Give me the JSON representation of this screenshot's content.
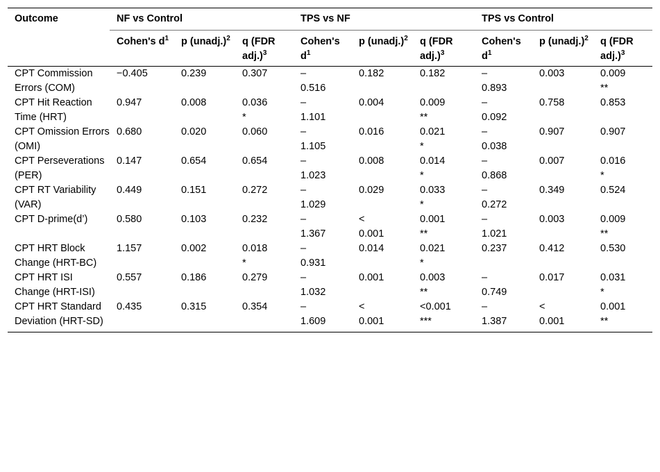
{
  "header": {
    "outcome": "Outcome",
    "groups": [
      "NF vs Control",
      "TPS vs NF",
      "TPS vs Control"
    ],
    "cols": [
      {
        "label": "Cohen's d",
        "sup": "1"
      },
      {
        "label": "p (unadj.)",
        "sup": "2"
      },
      {
        "label": "q (FDR adj.)",
        "sup": "3"
      }
    ]
  },
  "rows": [
    {
      "outcome": "CPT Commission Errors (COM)",
      "vals": [
        {
          "top": "−0.405",
          "bot": ""
        },
        {
          "top": "0.239",
          "bot": ""
        },
        {
          "top": "0.307",
          "bot": ""
        },
        {
          "top": "–",
          "bot": "0.516"
        },
        {
          "top": "0.182",
          "bot": ""
        },
        {
          "top": "0.182",
          "bot": ""
        },
        {
          "top": "–",
          "bot": "0.893"
        },
        {
          "top": "0.003",
          "bot": ""
        },
        {
          "top": "0.009",
          "bot": "**"
        }
      ]
    },
    {
      "outcome": "CPT Hit Reaction Time (HRT)",
      "vals": [
        {
          "top": "0.947",
          "bot": ""
        },
        {
          "top": "0.008",
          "bot": ""
        },
        {
          "top": "0.036",
          "bot": "*"
        },
        {
          "top": "–",
          "bot": "1.101"
        },
        {
          "top": "0.004",
          "bot": ""
        },
        {
          "top": "0.009",
          "bot": "**"
        },
        {
          "top": "–",
          "bot": "0.092"
        },
        {
          "top": "0.758",
          "bot": ""
        },
        {
          "top": "0.853",
          "bot": ""
        }
      ]
    },
    {
      "outcome": "CPT Omission Errors (OMI)",
      "vals": [
        {
          "top": "0.680",
          "bot": ""
        },
        {
          "top": "0.020",
          "bot": ""
        },
        {
          "top": "0.060",
          "bot": ""
        },
        {
          "top": "–",
          "bot": "1.105"
        },
        {
          "top": "0.016",
          "bot": ""
        },
        {
          "top": "0.021",
          "bot": "*"
        },
        {
          "top": "–",
          "bot": "0.038"
        },
        {
          "top": "0.907",
          "bot": ""
        },
        {
          "top": "0.907",
          "bot": ""
        }
      ]
    },
    {
      "outcome": "CPT Perseverations (PER)",
      "vals": [
        {
          "top": "0.147",
          "bot": ""
        },
        {
          "top": "0.654",
          "bot": ""
        },
        {
          "top": "0.654",
          "bot": ""
        },
        {
          "top": "–",
          "bot": "1.023"
        },
        {
          "top": "0.008",
          "bot": ""
        },
        {
          "top": "0.014",
          "bot": "*"
        },
        {
          "top": "–",
          "bot": "0.868"
        },
        {
          "top": "0.007",
          "bot": ""
        },
        {
          "top": "0.016",
          "bot": "*"
        }
      ]
    },
    {
      "outcome": "CPT RT Variability (VAR)",
      "vals": [
        {
          "top": "0.449",
          "bot": ""
        },
        {
          "top": "0.151",
          "bot": ""
        },
        {
          "top": "0.272",
          "bot": ""
        },
        {
          "top": "–",
          "bot": "1.029"
        },
        {
          "top": "0.029",
          "bot": ""
        },
        {
          "top": "0.033",
          "bot": "*"
        },
        {
          "top": "–",
          "bot": "0.272"
        },
        {
          "top": "0.349",
          "bot": ""
        },
        {
          "top": "0.524",
          "bot": ""
        }
      ]
    },
    {
      "outcome": "CPT D-prime(d’)",
      "vals": [
        {
          "top": "0.580",
          "bot": ""
        },
        {
          "top": "0.103",
          "bot": ""
        },
        {
          "top": "0.232",
          "bot": ""
        },
        {
          "top": "–",
          "bot": "1.367"
        },
        {
          "top": "<",
          "bot": "0.001"
        },
        {
          "top": "0.001",
          "bot": "**"
        },
        {
          "top": "–",
          "bot": "1.021"
        },
        {
          "top": "0.003",
          "bot": ""
        },
        {
          "top": "0.009",
          "bot": "**"
        }
      ]
    },
    {
      "outcome": "CPT HRT Block Change (HRT-BC)",
      "vals": [
        {
          "top": "1.157",
          "bot": ""
        },
        {
          "top": "0.002",
          "bot": ""
        },
        {
          "top": "0.018",
          "bot": "*"
        },
        {
          "top": "–",
          "bot": "0.931"
        },
        {
          "top": "0.014",
          "bot": ""
        },
        {
          "top": "0.021",
          "bot": "*"
        },
        {
          "top": "0.237",
          "bot": ""
        },
        {
          "top": "0.412",
          "bot": ""
        },
        {
          "top": "0.530",
          "bot": ""
        }
      ]
    },
    {
      "outcome": "CPT HRT ISI Change (HRT-ISI)",
      "vals": [
        {
          "top": "0.557",
          "bot": ""
        },
        {
          "top": "0.186",
          "bot": ""
        },
        {
          "top": "0.279",
          "bot": ""
        },
        {
          "top": "–",
          "bot": "1.032"
        },
        {
          "top": "0.001",
          "bot": ""
        },
        {
          "top": "0.003",
          "bot": "**"
        },
        {
          "top": "–",
          "bot": "0.749"
        },
        {
          "top": "0.017",
          "bot": ""
        },
        {
          "top": "0.031",
          "bot": "*"
        }
      ]
    },
    {
      "outcome": "CPT HRT Standard Deviation (HRT-SD)",
      "vals": [
        {
          "top": "0.435",
          "bot": ""
        },
        {
          "top": "0.315",
          "bot": ""
        },
        {
          "top": "0.354",
          "bot": ""
        },
        {
          "top": "–",
          "bot": "1.609"
        },
        {
          "top": "<",
          "bot": "0.001"
        },
        {
          "top": "<0.001",
          "bot": "***"
        },
        {
          "top": "–",
          "bot": "1.387"
        },
        {
          "top": "<",
          "bot": "0.001"
        },
        {
          "top": "0.001",
          "bot": "**"
        }
      ]
    }
  ]
}
